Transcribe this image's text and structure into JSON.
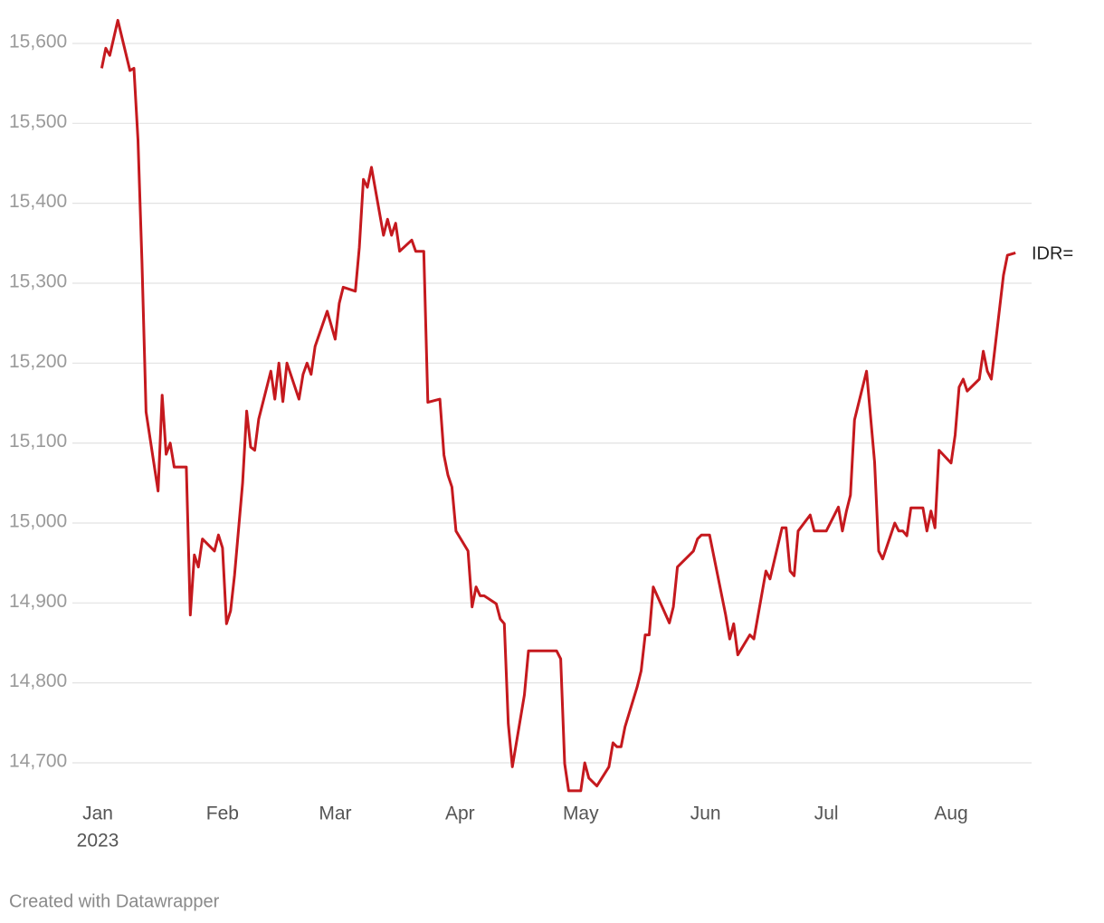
{
  "chart_data": {
    "type": "line",
    "x": [
      1,
      2,
      3,
      5,
      8,
      9,
      10,
      11,
      12,
      15,
      16,
      17,
      18,
      19,
      22,
      23,
      24,
      25,
      26,
      29,
      30,
      31,
      32,
      33,
      34,
      36,
      37,
      38,
      39,
      40,
      43,
      44,
      45,
      46,
      47,
      50,
      51,
      52,
      53,
      54,
      57,
      59,
      60,
      61,
      64,
      65,
      66,
      67,
      68,
      71,
      72,
      73,
      74,
      75,
      78,
      79,
      81,
      82,
      85,
      86,
      87,
      88,
      89,
      92,
      93,
      94,
      95,
      96,
      99,
      100,
      101,
      102,
      103,
      106,
      107,
      114,
      115,
      116,
      117,
      120,
      121,
      122,
      124,
      127,
      128,
      129,
      130,
      131,
      134,
      135,
      136,
      137,
      138,
      142,
      143,
      144,
      148,
      149,
      150,
      152,
      156,
      157,
      158,
      159,
      162,
      163,
      166,
      167,
      170,
      171,
      172,
      173,
      174,
      177,
      178,
      181,
      184,
      185,
      186,
      187,
      188,
      191,
      193,
      194,
      195,
      198,
      199,
      200,
      201,
      202,
      205,
      206,
      207,
      208,
      209,
      212,
      213,
      214,
      215,
      216,
      219,
      220,
      221,
      222,
      225,
      226,
      228
    ],
    "series": [
      {
        "name": "IDR=",
        "color": "#c5191e",
        "values": [
          15569,
          15594,
          15585,
          15629,
          15566,
          15569,
          15479,
          15326,
          15139,
          15040,
          15160,
          15086,
          15100,
          15070,
          15070,
          14885,
          14960,
          14945,
          14980,
          14965,
          14985,
          14969,
          14874,
          14890,
          14935,
          15050,
          15140,
          15095,
          15091,
          15130,
          15190,
          15155,
          15200,
          15152,
          15200,
          15155,
          15186,
          15200,
          15186,
          15221,
          15265,
          15230,
          15275,
          15295,
          15290,
          15345,
          15430,
          15420,
          15445,
          15360,
          15380,
          15360,
          15375,
          15340,
          15354,
          15340,
          15340,
          15151,
          15155,
          15085,
          15060,
          15045,
          14990,
          14965,
          14895,
          14920,
          14909,
          14909,
          14899,
          14880,
          14874,
          14749,
          14695,
          14785,
          14840,
          14840,
          14830,
          14699,
          14665,
          14665,
          14700,
          14681,
          14671,
          14695,
          14725,
          14720,
          14720,
          14745,
          14795,
          14815,
          14860,
          14860,
          14920,
          14875,
          14895,
          14945,
          14965,
          14980,
          14985,
          14985,
          14885,
          14855,
          14874,
          14835,
          14860,
          14855,
          14940,
          14930,
          14994,
          14994,
          14940,
          14934,
          14990,
          15010,
          14990,
          14990,
          15020,
          14990,
          15015,
          15035,
          15129,
          15190,
          15076,
          14965,
          14955,
          15000,
          14990,
          14990,
          14984,
          15019,
          15019,
          14990,
          15015,
          14994,
          15091,
          15075,
          15110,
          15170,
          15180,
          15165,
          15180,
          15215,
          15190,
          15180,
          15310,
          15335,
          15338
        ]
      }
    ],
    "xlim": [
      0,
      232
    ],
    "xticks": [
      {
        "value": 0,
        "label": "Jan"
      },
      {
        "value": 31,
        "label": "Feb"
      },
      {
        "value": 59,
        "label": "Mar"
      },
      {
        "value": 90,
        "label": "Apr"
      },
      {
        "value": 120,
        "label": "May"
      },
      {
        "value": 151,
        "label": "Jun"
      },
      {
        "value": 181,
        "label": "Jul"
      },
      {
        "value": 212,
        "label": "Aug"
      }
    ],
    "x_year": "2023",
    "ylim": [
      14660,
      15630
    ],
    "yticks": [
      {
        "value": 14700,
        "label": "14,700"
      },
      {
        "value": 14800,
        "label": "14,800"
      },
      {
        "value": 14900,
        "label": "14,900"
      },
      {
        "value": 15000,
        "label": "15,000"
      },
      {
        "value": 15100,
        "label": "15,100"
      },
      {
        "value": 15200,
        "label": "15,200"
      },
      {
        "value": 15300,
        "label": "15,300"
      },
      {
        "value": 15400,
        "label": "15,400"
      },
      {
        "value": 15500,
        "label": "15,500"
      },
      {
        "value": 15600,
        "label": "15,600"
      }
    ],
    "grid": true,
    "footer": "Created with Datawrapper"
  }
}
